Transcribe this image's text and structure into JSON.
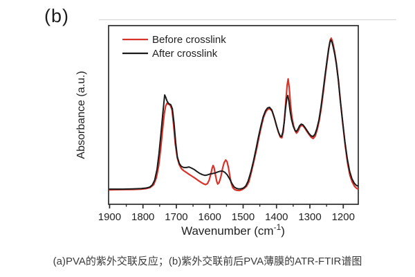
{
  "figure_label": "(b)",
  "caption": "(a)PVA的紫外交联反应；(b)紫外交联前后PVA薄膜的ATR-FTIR谱图",
  "colors": {
    "before_crosslink": "#d93229",
    "after_crosslink": "#1b1b1b",
    "axis": "#2a2a2a",
    "scan_artifact": "#d9d9d9"
  },
  "chart_data": {
    "type": "line",
    "title": "",
    "xlabel": {
      "base": "Wavenumber (cm",
      "sup": "-1",
      "end": ")"
    },
    "ylabel": "Absorbance (a.u.)",
    "x_ticks": [
      1900,
      1800,
      1700,
      1600,
      1500,
      1400,
      1300,
      1200
    ],
    "x_minor_step": 50,
    "x_range": [
      1903,
      1155
    ],
    "x_axis_direction": "decreasing",
    "ylim": [
      0,
      1
    ],
    "y_unit": "a.u. (normalized, no y ticks shown)",
    "grid": false,
    "legend": {
      "position": "top-left-inside"
    },
    "series": [
      {
        "name": "Before crosslink",
        "color": "#d93229",
        "points": [
          [
            1900,
            0.081
          ],
          [
            1860,
            0.082
          ],
          [
            1830,
            0.083
          ],
          [
            1805,
            0.085
          ],
          [
            1790,
            0.088
          ],
          [
            1778,
            0.094
          ],
          [
            1768,
            0.11
          ],
          [
            1760,
            0.148
          ],
          [
            1753,
            0.215
          ],
          [
            1747,
            0.31
          ],
          [
            1741,
            0.425
          ],
          [
            1736,
            0.51
          ],
          [
            1732,
            0.55
          ],
          [
            1728,
            0.566
          ],
          [
            1723,
            0.56
          ],
          [
            1718,
            0.553
          ],
          [
            1713,
            0.528
          ],
          [
            1708,
            0.44
          ],
          [
            1703,
            0.335
          ],
          [
            1697,
            0.258
          ],
          [
            1691,
            0.22
          ],
          [
            1685,
            0.2
          ],
          [
            1678,
            0.188
          ],
          [
            1670,
            0.178
          ],
          [
            1662,
            0.168
          ],
          [
            1653,
            0.157
          ],
          [
            1644,
            0.146
          ],
          [
            1635,
            0.134
          ],
          [
            1626,
            0.123
          ],
          [
            1618,
            0.114
          ],
          [
            1612,
            0.11
          ],
          [
            1607,
            0.116
          ],
          [
            1602,
            0.134
          ],
          [
            1597,
            0.168
          ],
          [
            1593,
            0.2
          ],
          [
            1590,
            0.217
          ],
          [
            1587,
            0.205
          ],
          [
            1583,
            0.165
          ],
          [
            1579,
            0.128
          ],
          [
            1576,
            0.113
          ],
          [
            1572,
            0.121
          ],
          [
            1567,
            0.152
          ],
          [
            1562,
            0.198
          ],
          [
            1557,
            0.233
          ],
          [
            1552,
            0.248
          ],
          [
            1548,
            0.238
          ],
          [
            1544,
            0.205
          ],
          [
            1540,
            0.16
          ],
          [
            1536,
            0.122
          ],
          [
            1531,
            0.093
          ],
          [
            1525,
            0.082
          ],
          [
            1518,
            0.078
          ],
          [
            1511,
            0.077
          ],
          [
            1504,
            0.081
          ],
          [
            1497,
            0.089
          ],
          [
            1490,
            0.1
          ],
          [
            1483,
            0.125
          ],
          [
            1476,
            0.175
          ],
          [
            1468,
            0.238
          ],
          [
            1460,
            0.306
          ],
          [
            1453,
            0.372
          ],
          [
            1446,
            0.432
          ],
          [
            1439,
            0.485
          ],
          [
            1432,
            0.518
          ],
          [
            1426,
            0.532
          ],
          [
            1420,
            0.535
          ],
          [
            1413,
            0.52
          ],
          [
            1406,
            0.48
          ],
          [
            1399,
            0.433
          ],
          [
            1393,
            0.397
          ],
          [
            1388,
            0.375
          ],
          [
            1384,
            0.372
          ],
          [
            1380,
            0.404
          ],
          [
            1376,
            0.478
          ],
          [
            1372,
            0.58
          ],
          [
            1368,
            0.668
          ],
          [
            1365,
            0.702
          ],
          [
            1362,
            0.655
          ],
          [
            1358,
            0.56
          ],
          [
            1354,
            0.488
          ],
          [
            1349,
            0.44
          ],
          [
            1344,
            0.41
          ],
          [
            1340,
            0.398
          ],
          [
            1335,
            0.41
          ],
          [
            1330,
            0.432
          ],
          [
            1325,
            0.443
          ],
          [
            1320,
            0.438
          ],
          [
            1314,
            0.423
          ],
          [
            1308,
            0.405
          ],
          [
            1302,
            0.389
          ],
          [
            1296,
            0.375
          ],
          [
            1290,
            0.368
          ],
          [
            1284,
            0.382
          ],
          [
            1278,
            0.418
          ],
          [
            1272,
            0.468
          ],
          [
            1266,
            0.537
          ],
          [
            1260,
            0.625
          ],
          [
            1254,
            0.718
          ],
          [
            1248,
            0.805
          ],
          [
            1243,
            0.875
          ],
          [
            1239,
            0.92
          ],
          [
            1236,
            0.93
          ],
          [
            1233,
            0.915
          ],
          [
            1229,
            0.882
          ],
          [
            1225,
            0.843
          ],
          [
            1220,
            0.782
          ],
          [
            1214,
            0.688
          ],
          [
            1208,
            0.568
          ],
          [
            1201,
            0.443
          ],
          [
            1194,
            0.325
          ],
          [
            1187,
            0.228
          ],
          [
            1180,
            0.162
          ],
          [
            1173,
            0.124
          ],
          [
            1166,
            0.1
          ],
          [
            1160,
            0.089
          ],
          [
            1156,
            0.086
          ]
        ]
      },
      {
        "name": "After crosslink",
        "color": "#1b1b1b",
        "points": [
          [
            1900,
            0.085
          ],
          [
            1860,
            0.085
          ],
          [
            1830,
            0.086
          ],
          [
            1805,
            0.088
          ],
          [
            1790,
            0.091
          ],
          [
            1780,
            0.096
          ],
          [
            1772,
            0.108
          ],
          [
            1765,
            0.135
          ],
          [
            1758,
            0.195
          ],
          [
            1752,
            0.285
          ],
          [
            1746,
            0.4
          ],
          [
            1741,
            0.5
          ],
          [
            1737,
            0.575
          ],
          [
            1735,
            0.612
          ],
          [
            1732,
            0.6
          ],
          [
            1728,
            0.578
          ],
          [
            1723,
            0.563
          ],
          [
            1717,
            0.558
          ],
          [
            1712,
            0.535
          ],
          [
            1707,
            0.455
          ],
          [
            1702,
            0.345
          ],
          [
            1697,
            0.265
          ],
          [
            1691,
            0.228
          ],
          [
            1685,
            0.212
          ],
          [
            1678,
            0.206
          ],
          [
            1670,
            0.206
          ],
          [
            1662,
            0.209
          ],
          [
            1654,
            0.202
          ],
          [
            1646,
            0.194
          ],
          [
            1638,
            0.183
          ],
          [
            1630,
            0.173
          ],
          [
            1622,
            0.166
          ],
          [
            1615,
            0.162
          ],
          [
            1608,
            0.164
          ],
          [
            1600,
            0.169
          ],
          [
            1592,
            0.172
          ],
          [
            1584,
            0.175
          ],
          [
            1576,
            0.181
          ],
          [
            1569,
            0.185
          ],
          [
            1562,
            0.186
          ],
          [
            1555,
            0.179
          ],
          [
            1548,
            0.166
          ],
          [
            1541,
            0.144
          ],
          [
            1534,
            0.118
          ],
          [
            1527,
            0.097
          ],
          [
            1520,
            0.089
          ],
          [
            1513,
            0.086
          ],
          [
            1506,
            0.087
          ],
          [
            1499,
            0.091
          ],
          [
            1492,
            0.103
          ],
          [
            1485,
            0.13
          ],
          [
            1477,
            0.18
          ],
          [
            1469,
            0.243
          ],
          [
            1461,
            0.312
          ],
          [
            1454,
            0.378
          ],
          [
            1447,
            0.437
          ],
          [
            1440,
            0.49
          ],
          [
            1433,
            0.523
          ],
          [
            1427,
            0.539
          ],
          [
            1421,
            0.543
          ],
          [
            1414,
            0.528
          ],
          [
            1407,
            0.488
          ],
          [
            1400,
            0.44
          ],
          [
            1394,
            0.403
          ],
          [
            1389,
            0.382
          ],
          [
            1385,
            0.379
          ],
          [
            1381,
            0.404
          ],
          [
            1377,
            0.458
          ],
          [
            1373,
            0.535
          ],
          [
            1369,
            0.595
          ],
          [
            1366,
            0.609
          ],
          [
            1363,
            0.578
          ],
          [
            1359,
            0.52
          ],
          [
            1355,
            0.474
          ],
          [
            1350,
            0.438
          ],
          [
            1345,
            0.415
          ],
          [
            1341,
            0.407
          ],
          [
            1336,
            0.419
          ],
          [
            1331,
            0.439
          ],
          [
            1326,
            0.449
          ],
          [
            1321,
            0.445
          ],
          [
            1315,
            0.431
          ],
          [
            1309,
            0.414
          ],
          [
            1303,
            0.397
          ],
          [
            1297,
            0.384
          ],
          [
            1291,
            0.379
          ],
          [
            1285,
            0.392
          ],
          [
            1279,
            0.425
          ],
          [
            1273,
            0.472
          ],
          [
            1267,
            0.54
          ],
          [
            1261,
            0.625
          ],
          [
            1255,
            0.715
          ],
          [
            1249,
            0.8
          ],
          [
            1244,
            0.868
          ],
          [
            1240,
            0.908
          ],
          [
            1237,
            0.919
          ],
          [
            1234,
            0.908
          ],
          [
            1230,
            0.88
          ],
          [
            1226,
            0.845
          ],
          [
            1221,
            0.79
          ],
          [
            1215,
            0.7
          ],
          [
            1209,
            0.585
          ],
          [
            1202,
            0.465
          ],
          [
            1195,
            0.35
          ],
          [
            1188,
            0.255
          ],
          [
            1181,
            0.185
          ],
          [
            1174,
            0.143
          ],
          [
            1167,
            0.118
          ],
          [
            1161,
            0.106
          ],
          [
            1156,
            0.102
          ]
        ]
      }
    ]
  }
}
